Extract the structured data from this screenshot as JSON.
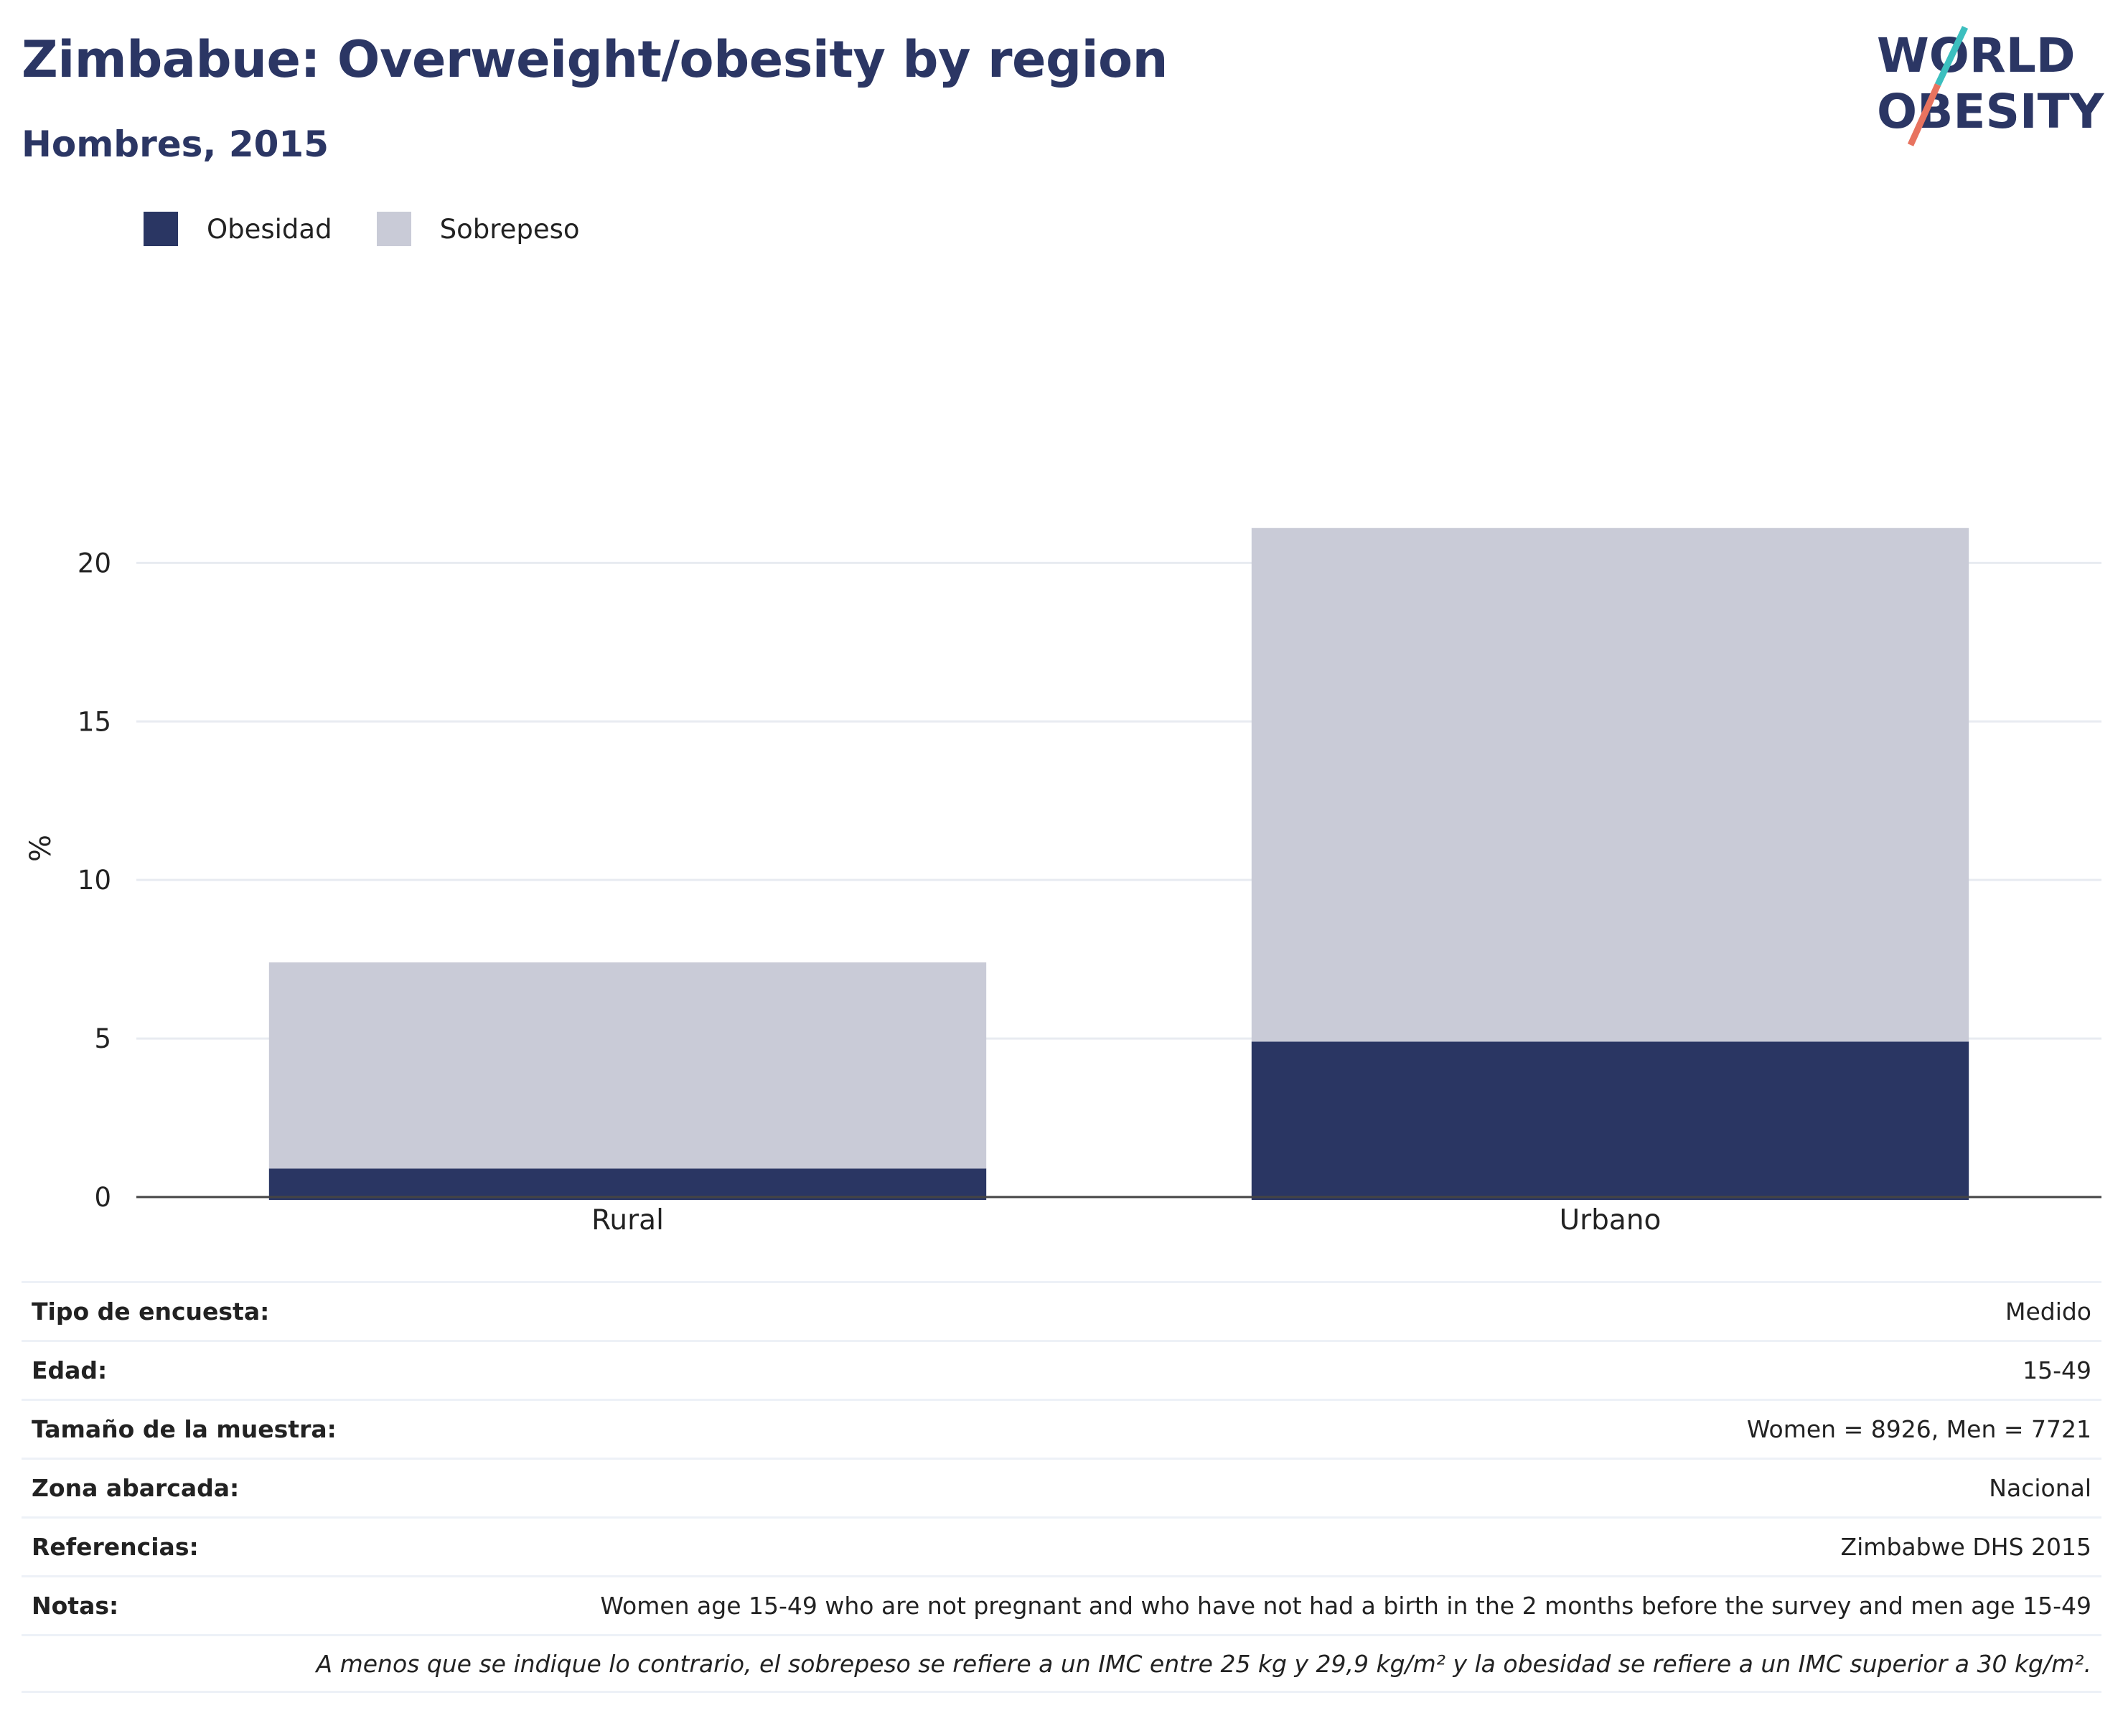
{
  "header": {
    "title": "Zimbabue: Overweight/obesity by region",
    "subtitle": "Hombres, 2015",
    "logo_text_line1": "WORLD",
    "logo_text_line2": "OBESITY"
  },
  "legend": [
    {
      "label": "Obesidad",
      "color": "#2a3663"
    },
    {
      "label": "Sobrepeso",
      "color": "#c9cbd7"
    }
  ],
  "chart_data": {
    "type": "bar",
    "stacked": true,
    "categories": [
      "Rural",
      "Urbano"
    ],
    "series": [
      {
        "name": "Obesidad",
        "values": [
          0.9,
          4.9
        ],
        "color": "#2a3663"
      },
      {
        "name": "Sobrepeso",
        "values": [
          6.5,
          16.2
        ],
        "color": "#c9cbd7"
      }
    ],
    "ylabel": "%",
    "xlabel": "",
    "ylim": [
      0,
      22
    ],
    "yticks": [
      0,
      5,
      10,
      15,
      20
    ],
    "grid": true,
    "legend_position": "top-left"
  },
  "info": {
    "rows": [
      {
        "label": "Tipo de encuesta:",
        "value": "Medido"
      },
      {
        "label": "Edad:",
        "value": "15-49"
      },
      {
        "label": "Tamaño de la muestra:",
        "value": "Women = 8926, Men = 7721"
      },
      {
        "label": "Zona abarcada:",
        "value": "Nacional"
      },
      {
        "label": "Referencias:",
        "value": "Zimbabwe DHS 2015"
      },
      {
        "label": "Notas:",
        "value": "Women age 15-49 who are not pregnant and who have not had a birth in the 2 months before the survey and men age 15-49"
      }
    ],
    "note": "A menos que se indique lo contrario, el sobrepeso se refiere a un IMC entre 25 kg y 29,9 kg/m² y la obesidad se refiere a un IMC superior a 30 kg/m²."
  }
}
